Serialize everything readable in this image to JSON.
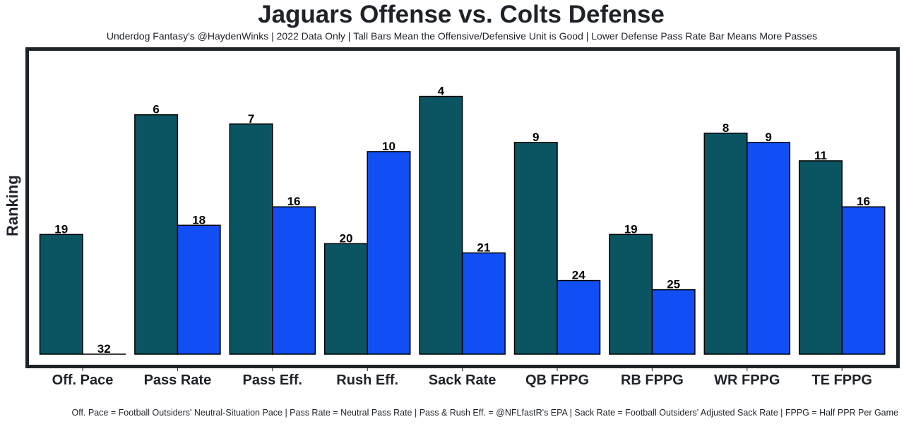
{
  "chart_data": {
    "type": "bar",
    "title": "Jaguars Offense vs. Colts Defense",
    "subtitle": "Underdog Fantasy's @HaydenWinks | 2022 Data Only | Tall Bars Mean the Offensive/Defensive Unit is Good | Lower Defense Pass Rate Bar Means More Passes",
    "xlabel": "",
    "ylabel": "Ranking",
    "footnote": "Off. Pace = Football Outsiders' Neutral-Situation Pace | Pass Rate = Neutral Pass Rate | Pass & Rush Eff. = @NFLfastR's EPA | Sack Rate = Football Outsiders' Adjusted Sack Rate | FPPG = Half PPR Per Game",
    "categories": [
      "Off. Pace",
      "Pass Rate",
      "Pass Eff.",
      "Rush Eff.",
      "Sack Rate",
      "QB FPPG",
      "RB FPPG",
      "WR FPPG",
      "TE FPPG"
    ],
    "series": [
      {
        "name": "Jaguars Offense",
        "color": "#0b5563",
        "values": [
          19,
          6,
          7,
          20,
          4,
          9,
          19,
          8,
          11
        ]
      },
      {
        "name": "Colts Defense",
        "color": "#114ff5",
        "values": [
          32,
          18,
          16,
          10,
          21,
          24,
          25,
          9,
          16
        ]
      }
    ],
    "value_meaning": "rank (1 = best); bar height = 32 - rank",
    "ylim_rank": [
      32,
      1
    ],
    "grid": false,
    "legend": "none"
  }
}
